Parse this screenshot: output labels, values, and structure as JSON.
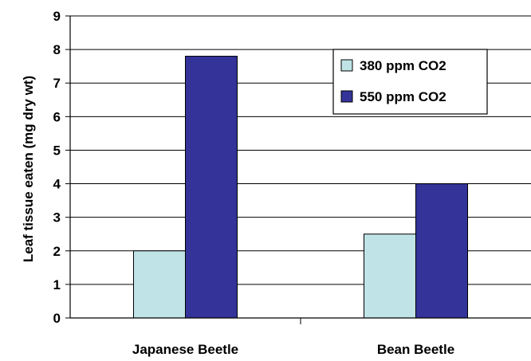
{
  "chart_data": {
    "type": "bar",
    "title": "",
    "xlabel": "",
    "ylabel": "Leaf tissue eaten (mg dry wt)",
    "ylim": [
      0,
      9
    ],
    "yticks": [
      0,
      1,
      2,
      3,
      4,
      5,
      6,
      7,
      8,
      9
    ],
    "grid": true,
    "legend_position": "top-right",
    "categories": [
      "Japanese Beetle",
      "Bean Beetle"
    ],
    "series": [
      {
        "name": "380 ppm CO2",
        "values": [
          2.0,
          2.5
        ],
        "color": "#bfe3e6"
      },
      {
        "name": "550 ppm CO2",
        "values": [
          7.8,
          4.0
        ],
        "color": "#333399"
      }
    ]
  }
}
